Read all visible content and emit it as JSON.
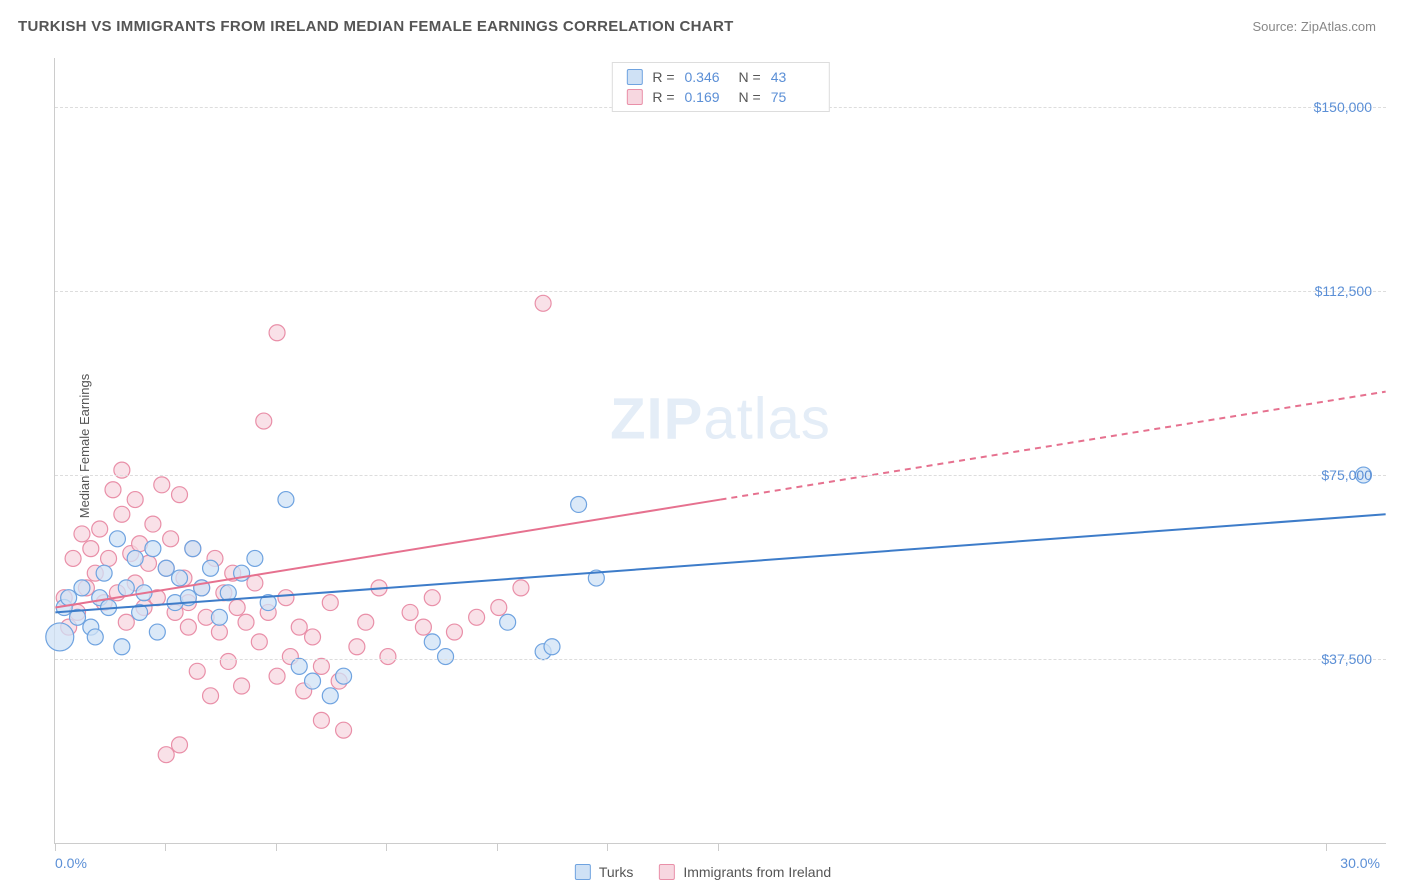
{
  "title": "TURKISH VS IMMIGRANTS FROM IRELAND MEDIAN FEMALE EARNINGS CORRELATION CHART",
  "source_label": "Source: ",
  "source_name": "ZipAtlas.com",
  "watermark": {
    "left": "ZIP",
    "right": "atlas"
  },
  "chart": {
    "type": "scatter",
    "y_axis_label": "Median Female Earnings",
    "background_color": "#ffffff",
    "grid_color": "#dddddd",
    "axis_color": "#cccccc",
    "tick_label_color": "#5b8fd6",
    "xlim": [
      0,
      30
    ],
    "ylim": [
      0,
      160000
    ],
    "x_min_label": "0.0%",
    "x_max_label": "30.0%",
    "x_tick_positions_pct": [
      0,
      8.3,
      16.6,
      24.9,
      33.2,
      41.5,
      49.8,
      95.5
    ],
    "y_ticks": [
      {
        "value": 37500,
        "label": "$37,500"
      },
      {
        "value": 75000,
        "label": "$75,000"
      },
      {
        "value": 112500,
        "label": "$112,500"
      },
      {
        "value": 150000,
        "label": "$150,000"
      }
    ],
    "series": [
      {
        "id": "turks",
        "name": "Turks",
        "R": "0.346",
        "N": "43",
        "marker_fill": "#cfe1f5",
        "marker_stroke": "#6fa3e0",
        "marker_opacity": 0.75,
        "marker_radius": 8,
        "line_color": "#3d7cc9",
        "line_width": 2,
        "line_dash_after_x": 30,
        "regression": {
          "x1": 0,
          "y1": 47000,
          "x2": 30,
          "y2": 67000
        },
        "points": [
          {
            "x": 0.1,
            "y": 42000,
            "r": 14
          },
          {
            "x": 0.2,
            "y": 48000
          },
          {
            "x": 0.3,
            "y": 50000
          },
          {
            "x": 0.5,
            "y": 46000
          },
          {
            "x": 0.6,
            "y": 52000
          },
          {
            "x": 0.8,
            "y": 44000
          },
          {
            "x": 0.9,
            "y": 42000
          },
          {
            "x": 1.0,
            "y": 50000
          },
          {
            "x": 1.1,
            "y": 55000
          },
          {
            "x": 1.2,
            "y": 48000
          },
          {
            "x": 1.4,
            "y": 62000
          },
          {
            "x": 1.5,
            "y": 40000
          },
          {
            "x": 1.6,
            "y": 52000
          },
          {
            "x": 1.8,
            "y": 58000
          },
          {
            "x": 1.9,
            "y": 47000
          },
          {
            "x": 2.0,
            "y": 51000
          },
          {
            "x": 2.2,
            "y": 60000
          },
          {
            "x": 2.3,
            "y": 43000
          },
          {
            "x": 2.5,
            "y": 56000
          },
          {
            "x": 2.7,
            "y": 49000
          },
          {
            "x": 2.8,
            "y": 54000
          },
          {
            "x": 3.0,
            "y": 50000
          },
          {
            "x": 3.1,
            "y": 60000
          },
          {
            "x": 3.3,
            "y": 52000
          },
          {
            "x": 3.5,
            "y": 56000
          },
          {
            "x": 3.7,
            "y": 46000
          },
          {
            "x": 3.9,
            "y": 51000
          },
          {
            "x": 4.2,
            "y": 55000
          },
          {
            "x": 4.5,
            "y": 58000
          },
          {
            "x": 4.8,
            "y": 49000
          },
          {
            "x": 5.2,
            "y": 70000
          },
          {
            "x": 5.5,
            "y": 36000
          },
          {
            "x": 5.8,
            "y": 33000
          },
          {
            "x": 6.2,
            "y": 30000
          },
          {
            "x": 6.5,
            "y": 34000
          },
          {
            "x": 8.5,
            "y": 41000
          },
          {
            "x": 8.8,
            "y": 38000
          },
          {
            "x": 10.2,
            "y": 45000
          },
          {
            "x": 11.0,
            "y": 39000
          },
          {
            "x": 11.2,
            "y": 40000
          },
          {
            "x": 11.8,
            "y": 69000
          },
          {
            "x": 12.2,
            "y": 54000
          },
          {
            "x": 29.5,
            "y": 75000
          }
        ]
      },
      {
        "id": "ireland",
        "name": "Immigrants from Ireland",
        "R": "0.169",
        "N": "75",
        "marker_fill": "#f7d7e0",
        "marker_stroke": "#e98fa8",
        "marker_opacity": 0.75,
        "marker_radius": 8,
        "line_color": "#e6718f",
        "line_width": 2,
        "line_dash_after_x": 15,
        "regression": {
          "x1": 0,
          "y1": 48000,
          "x2": 30,
          "y2": 92000
        },
        "points": [
          {
            "x": 0.2,
            "y": 50000
          },
          {
            "x": 0.3,
            "y": 44000
          },
          {
            "x": 0.4,
            "y": 58000
          },
          {
            "x": 0.5,
            "y": 47000
          },
          {
            "x": 0.6,
            "y": 63000
          },
          {
            "x": 0.7,
            "y": 52000
          },
          {
            "x": 0.8,
            "y": 60000
          },
          {
            "x": 0.9,
            "y": 55000
          },
          {
            "x": 1.0,
            "y": 64000
          },
          {
            "x": 1.1,
            "y": 49000
          },
          {
            "x": 1.2,
            "y": 58000
          },
          {
            "x": 1.3,
            "y": 72000
          },
          {
            "x": 1.4,
            "y": 51000
          },
          {
            "x": 1.5,
            "y": 67000
          },
          {
            "x": 1.5,
            "y": 76000
          },
          {
            "x": 1.6,
            "y": 45000
          },
          {
            "x": 1.7,
            "y": 59000
          },
          {
            "x": 1.8,
            "y": 53000
          },
          {
            "x": 1.8,
            "y": 70000
          },
          {
            "x": 1.9,
            "y": 61000
          },
          {
            "x": 2.0,
            "y": 48000
          },
          {
            "x": 2.1,
            "y": 57000
          },
          {
            "x": 2.2,
            "y": 65000
          },
          {
            "x": 2.3,
            "y": 50000
          },
          {
            "x": 2.4,
            "y": 73000
          },
          {
            "x": 2.5,
            "y": 56000
          },
          {
            "x": 2.5,
            "y": 18000
          },
          {
            "x": 2.6,
            "y": 62000
          },
          {
            "x": 2.7,
            "y": 47000
          },
          {
            "x": 2.8,
            "y": 71000
          },
          {
            "x": 2.8,
            "y": 20000
          },
          {
            "x": 2.9,
            "y": 54000
          },
          {
            "x": 3.0,
            "y": 49000
          },
          {
            "x": 3.0,
            "y": 44000
          },
          {
            "x": 3.1,
            "y": 60000
          },
          {
            "x": 3.2,
            "y": 35000
          },
          {
            "x": 3.3,
            "y": 52000
          },
          {
            "x": 3.4,
            "y": 46000
          },
          {
            "x": 3.5,
            "y": 30000
          },
          {
            "x": 3.6,
            "y": 58000
          },
          {
            "x": 3.7,
            "y": 43000
          },
          {
            "x": 3.8,
            "y": 51000
          },
          {
            "x": 3.9,
            "y": 37000
          },
          {
            "x": 4.0,
            "y": 55000
          },
          {
            "x": 4.1,
            "y": 48000
          },
          {
            "x": 4.2,
            "y": 32000
          },
          {
            "x": 4.3,
            "y": 45000
          },
          {
            "x": 4.5,
            "y": 53000
          },
          {
            "x": 4.6,
            "y": 41000
          },
          {
            "x": 4.7,
            "y": 86000
          },
          {
            "x": 4.8,
            "y": 47000
          },
          {
            "x": 5.0,
            "y": 34000
          },
          {
            "x": 5.0,
            "y": 104000
          },
          {
            "x": 5.2,
            "y": 50000
          },
          {
            "x": 5.3,
            "y": 38000
          },
          {
            "x": 5.5,
            "y": 44000
          },
          {
            "x": 5.6,
            "y": 31000
          },
          {
            "x": 5.8,
            "y": 42000
          },
          {
            "x": 6.0,
            "y": 36000
          },
          {
            "x": 6.0,
            "y": 25000
          },
          {
            "x": 6.2,
            "y": 49000
          },
          {
            "x": 6.4,
            "y": 33000
          },
          {
            "x": 6.5,
            "y": 23000
          },
          {
            "x": 6.8,
            "y": 40000
          },
          {
            "x": 7.0,
            "y": 45000
          },
          {
            "x": 7.3,
            "y": 52000
          },
          {
            "x": 7.5,
            "y": 38000
          },
          {
            "x": 8.0,
            "y": 47000
          },
          {
            "x": 8.3,
            "y": 44000
          },
          {
            "x": 8.5,
            "y": 50000
          },
          {
            "x": 9.0,
            "y": 43000
          },
          {
            "x": 9.5,
            "y": 46000
          },
          {
            "x": 10.0,
            "y": 48000
          },
          {
            "x": 10.5,
            "y": 52000
          },
          {
            "x": 11.0,
            "y": 110000
          }
        ]
      }
    ]
  },
  "legend_bottom": [
    {
      "series": "turks",
      "label": "Turks"
    },
    {
      "series": "ireland",
      "label": "Immigrants from Ireland"
    }
  ]
}
